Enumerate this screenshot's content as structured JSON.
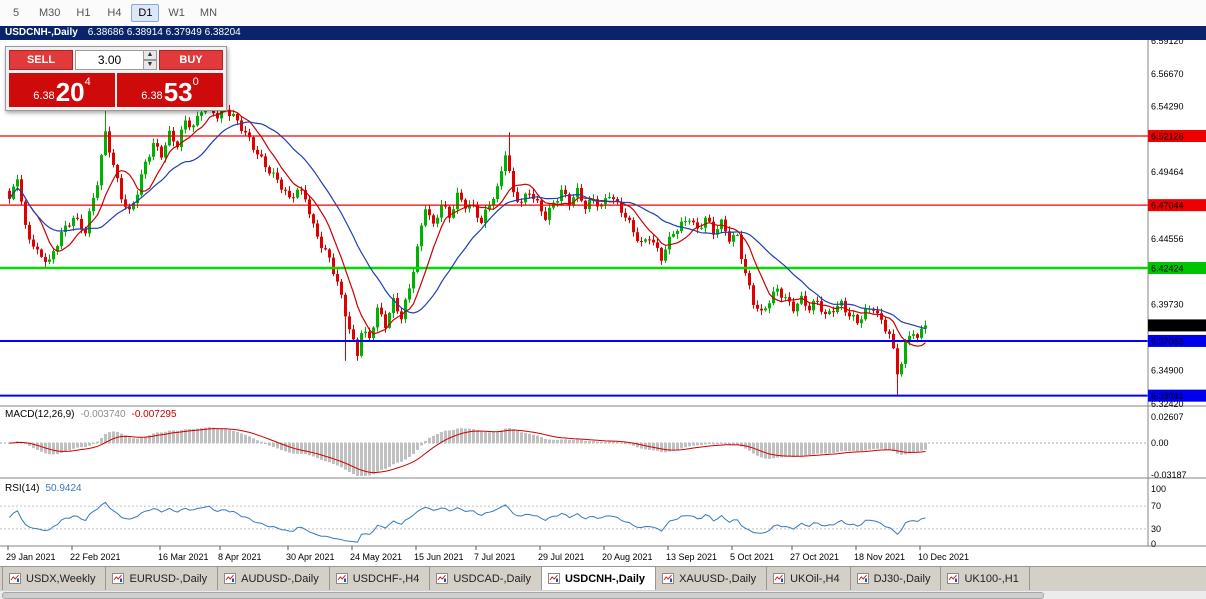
{
  "toolbar": {
    "timeframes": [
      "5",
      "M30",
      "H1",
      "H4",
      "D1",
      "W1",
      "MN"
    ],
    "active_timeframe": "D1"
  },
  "title_bar": {
    "symbol": "USDCNH-,Daily",
    "ohlc": "6.38686 6.38914 6.37949 6.38204"
  },
  "trade_panel": {
    "sell_label": "SELL",
    "buy_label": "BUY",
    "volume_value": "3.00",
    "up_arrow": "▲",
    "down_arrow": "▼",
    "bid": {
      "prefix": "6.38",
      "pips": "20",
      "point": "4"
    },
    "ask": {
      "prefix": "6.38",
      "pips": "53",
      "point": "0"
    }
  },
  "chart_data": {
    "type": "candlestick",
    "symbol": "USDCNH-",
    "timeframe": "Daily",
    "colors": {
      "up": "#00b200",
      "down": "#e00000",
      "background": "#ffffff"
    },
    "price_axis": {
      "labels": [
        "6.59120",
        "6.56670",
        "6.54290",
        "6.49464",
        "6.44556",
        "6.39730",
        "6.34900",
        "6.32420"
      ]
    },
    "levels": [
      {
        "price": 6.52126,
        "label": "6.52126",
        "color": "#f00000",
        "box_color": "#ee0000",
        "width": 1.3
      },
      {
        "price": 6.47044,
        "label": "6.47044",
        "color": "#f00000",
        "box_color": "#ee0000",
        "width": 1.3
      },
      {
        "price": 6.42424,
        "label": "6.42424",
        "color": "#00dc00",
        "box_color": "#00c400",
        "width": 2.5
      },
      {
        "price": 6.37063,
        "label": "6.37063",
        "color": "#0000ff",
        "box_color": "#0000ee",
        "width": 2
      },
      {
        "price": 6.33041,
        "label": "6.33041",
        "color": "#0000ff",
        "box_color": "#0000ee",
        "width": 2
      }
    ],
    "current_price": {
      "value": 6.38204,
      "label": "6.38204",
      "box_color": "#000000"
    },
    "moving_averages": [
      {
        "period": 8,
        "color": "#cc0000"
      },
      {
        "period": 21,
        "color": "#1f3fae"
      }
    ],
    "x_axis": {
      "labels": [
        {
          "text": "29 Jan 2021",
          "bar": 0
        },
        {
          "text": "22 Feb 2021",
          "bar": 16
        },
        {
          "text": "16 Mar 2021",
          "bar": 38
        },
        {
          "text": "8 Apr 2021",
          "bar": 53
        },
        {
          "text": "30 Apr 2021",
          "bar": 70
        },
        {
          "text": "24 May 2021",
          "bar": 86
        },
        {
          "text": "15 Jun 2021",
          "bar": 102
        },
        {
          "text": "7 Jul 2021",
          "bar": 117
        },
        {
          "text": "29 Jul 2021",
          "bar": 133
        },
        {
          "text": "20 Aug 2021",
          "bar": 149
        },
        {
          "text": "13 Sep 2021",
          "bar": 165
        },
        {
          "text": "5 Oct 2021",
          "bar": 181
        },
        {
          "text": "27 Oct 2021",
          "bar": 196
        },
        {
          "text": "18 Nov 2021",
          "bar": 212
        },
        {
          "text": "10 Dec 2021",
          "bar": 228
        }
      ]
    },
    "candles_spec": {
      "count": 230,
      "waypoints": [
        [
          0,
          6.472
        ],
        [
          2,
          6.492
        ],
        [
          4,
          6.455
        ],
        [
          7,
          6.436
        ],
        [
          10,
          6.427
        ],
        [
          13,
          6.449
        ],
        [
          16,
          6.463
        ],
        [
          19,
          6.452
        ],
        [
          22,
          6.486
        ],
        [
          24,
          6.522
        ],
        [
          26,
          6.5
        ],
        [
          28,
          6.478
        ],
        [
          30,
          6.466
        ],
        [
          32,
          6.48
        ],
        [
          34,
          6.5
        ],
        [
          36,
          6.514
        ],
        [
          38,
          6.508
        ],
        [
          40,
          6.524
        ],
        [
          42,
          6.516
        ],
        [
          44,
          6.532
        ],
        [
          46,
          6.526
        ],
        [
          48,
          6.54
        ],
        [
          50,
          6.545
        ],
        [
          52,
          6.537
        ],
        [
          54,
          6.542
        ],
        [
          56,
          6.535
        ],
        [
          58,
          6.526
        ],
        [
          61,
          6.513
        ],
        [
          64,
          6.501
        ],
        [
          67,
          6.489
        ],
        [
          70,
          6.473
        ],
        [
          72,
          6.481
        ],
        [
          74,
          6.477
        ],
        [
          76,
          6.456
        ],
        [
          78,
          6.442
        ],
        [
          80,
          6.43
        ],
        [
          82,
          6.412
        ],
        [
          84,
          6.39
        ],
        [
          86,
          6.37
        ],
        [
          87,
          6.362
        ],
        [
          88,
          6.38
        ],
        [
          90,
          6.373
        ],
        [
          92,
          6.393
        ],
        [
          94,
          6.381
        ],
        [
          96,
          6.399
        ],
        [
          98,
          6.389
        ],
        [
          100,
          6.411
        ],
        [
          102,
          6.439
        ],
        [
          104,
          6.469
        ],
        [
          106,
          6.453
        ],
        [
          108,
          6.471
        ],
        [
          110,
          6.463
        ],
        [
          112,
          6.479
        ],
        [
          114,
          6.471
        ],
        [
          116,
          6.468
        ],
        [
          118,
          6.456
        ],
        [
          120,
          6.471
        ],
        [
          122,
          6.483
        ],
        [
          124,
          6.511
        ],
        [
          126,
          6.479
        ],
        [
          128,
          6.471
        ],
        [
          130,
          6.479
        ],
        [
          132,
          6.471
        ],
        [
          134,
          6.463
        ],
        [
          136,
          6.473
        ],
        [
          138,
          6.481
        ],
        [
          140,
          6.471
        ],
        [
          142,
          6.479
        ],
        [
          144,
          6.469
        ],
        [
          146,
          6.476
        ],
        [
          148,
          6.471
        ],
        [
          150,
          6.479
        ],
        [
          152,
          6.469
        ],
        [
          154,
          6.461
        ],
        [
          156,
          6.451
        ],
        [
          158,
          6.443
        ],
        [
          160,
          6.449
        ],
        [
          163,
          6.431
        ],
        [
          166,
          6.449
        ],
        [
          168,
          6.456
        ],
        [
          170,
          6.463
        ],
        [
          172,
          6.453
        ],
        [
          174,
          6.461
        ],
        [
          176,
          6.449
        ],
        [
          178,
          6.456
        ],
        [
          180,
          6.446
        ],
        [
          182,
          6.449
        ],
        [
          184,
          6.421
        ],
        [
          186,
          6.399
        ],
        [
          188,
          6.389
        ],
        [
          190,
          6.399
        ],
        [
          192,
          6.409
        ],
        [
          194,
          6.403
        ],
        [
          196,
          6.396
        ],
        [
          198,
          6.401
        ],
        [
          200,
          6.393
        ],
        [
          202,
          6.399
        ],
        [
          204,
          6.389
        ],
        [
          206,
          6.396
        ],
        [
          208,
          6.399
        ],
        [
          210,
          6.389
        ],
        [
          212,
          6.383
        ],
        [
          214,
          6.391
        ],
        [
          216,
          6.396
        ],
        [
          218,
          6.386
        ],
        [
          220,
          6.377
        ],
        [
          221,
          6.363
        ],
        [
          222,
          6.347
        ],
        [
          223,
          6.354
        ],
        [
          224,
          6.366
        ],
        [
          225,
          6.373
        ],
        [
          226,
          6.377
        ],
        [
          227,
          6.371
        ],
        [
          228,
          6.379
        ],
        [
          229,
          6.38204
        ]
      ],
      "overrides": {
        "24": {
          "high": 6.552
        },
        "50": {
          "high": 6.551
        },
        "84": {
          "low": 6.356
        },
        "125": {
          "high": 6.524
        },
        "222": {
          "low": 6.3305
        }
      }
    },
    "indicators": {
      "macd": {
        "title": "MACD(12,26,9)",
        "values_text": [
          "-0.003740",
          "-0.007295"
        ],
        "axis_labels": [
          "0.02607",
          "0.00",
          "-0.03187"
        ],
        "fast": 12,
        "slow": 26,
        "signal": 9,
        "hist_color": "#c0c0c0",
        "signal_color": "#cc0000"
      },
      "rsi": {
        "title": "RSI(14)",
        "value_text": "50.9424",
        "axis_labels": [
          "100",
          "70",
          "30",
          "0"
        ],
        "period": 14,
        "levels": [
          70,
          30
        ],
        "color": "#3878c0"
      }
    }
  },
  "tabs": {
    "items": [
      "USDX,Weekly",
      "EURUSD-,Daily",
      "AUDUSD-,Daily",
      "USDCHF-,H4",
      "USDCAD-,Daily",
      "USDCNH-,Daily",
      "XAUUSD-,Daily",
      "UKOil-,H4",
      "DJ30-,Daily",
      "UK100-,H1"
    ],
    "active": "USDCNH-,Daily"
  }
}
